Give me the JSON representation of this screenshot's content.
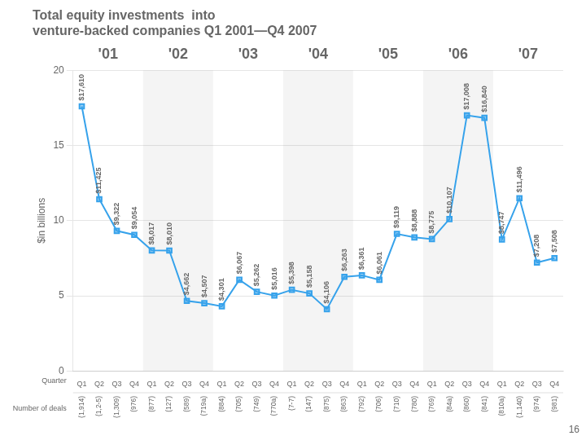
{
  "chart_data": {
    "type": "line",
    "title": [
      "Total equity investments  into",
      "venture-backed companies Q1 2001—Q4 2007"
    ],
    "ylabel": "$in billions",
    "categories": [
      "Q1",
      "Q2",
      "Q3",
      "Q4",
      "Q1",
      "Q2",
      "Q3",
      "Q4",
      "Q1",
      "Q2",
      "Q3",
      "Q4",
      "Q1",
      "Q2",
      "Q3",
      "Q4",
      "Q1",
      "Q2",
      "Q3",
      "Q4",
      "Q1",
      "Q2",
      "Q3",
      "Q4",
      "Q1",
      "Q2",
      "Q3",
      "Q4"
    ],
    "values": [
      17.61,
      11.425,
      9.322,
      9.054,
      8.017,
      8.01,
      4.662,
      4.507,
      4.301,
      6.067,
      5.262,
      5.016,
      5.398,
      5.158,
      4.106,
      6.263,
      6.361,
      6.061,
      9.119,
      8.888,
      8.775,
      10.107,
      17.008,
      16.84,
      8.747,
      11.496,
      7.208,
      7.508
    ],
    "value_labels": [
      "$17,610",
      "$11,425",
      "$9,322",
      "$9,054",
      "$8,017",
      "$8,010",
      "$4,662",
      "$4,507",
      "$4,301",
      "$6,067",
      "$5,262",
      "$5,016",
      "$5,398",
      "$5,158",
      "$4,106",
      "$6,263",
      "$6,361",
      "$6,061",
      "$9,119",
      "$8,888",
      "$8,775",
      "$10,107",
      "$17,008",
      "$16,840",
      "$8,747",
      "$11,496",
      "$7,208",
      "$7,508"
    ],
    "data_labels": true,
    "marker": "square",
    "year_labels": [
      "'01",
      "'02",
      "'03",
      "'04",
      "'05",
      "'06",
      "'07"
    ],
    "row_labels": [
      "Quarter",
      "Number of deals"
    ],
    "deal_labels": [
      "(1,914)",
      "(1,2-5)",
      "(1,309)",
      "(976)",
      "(877)",
      "(127)",
      "(589)",
      "(719a)",
      "(884)",
      "(705)",
      "(749)",
      "(770a)",
      "(7-7)",
      "(147)",
      "(875)",
      "(863)",
      "(792)",
      "(706)",
      "(710)",
      "(780)",
      "(769)",
      "(84a)",
      "(860)",
      "(841)",
      "(810a)",
      "(1,140)",
      "(974)",
      "(981)"
    ],
    "page_number": "16",
    "ylim": [
      0,
      20
    ],
    "yticks": [
      0,
      5,
      10,
      15,
      20
    ],
    "grid": true
  }
}
